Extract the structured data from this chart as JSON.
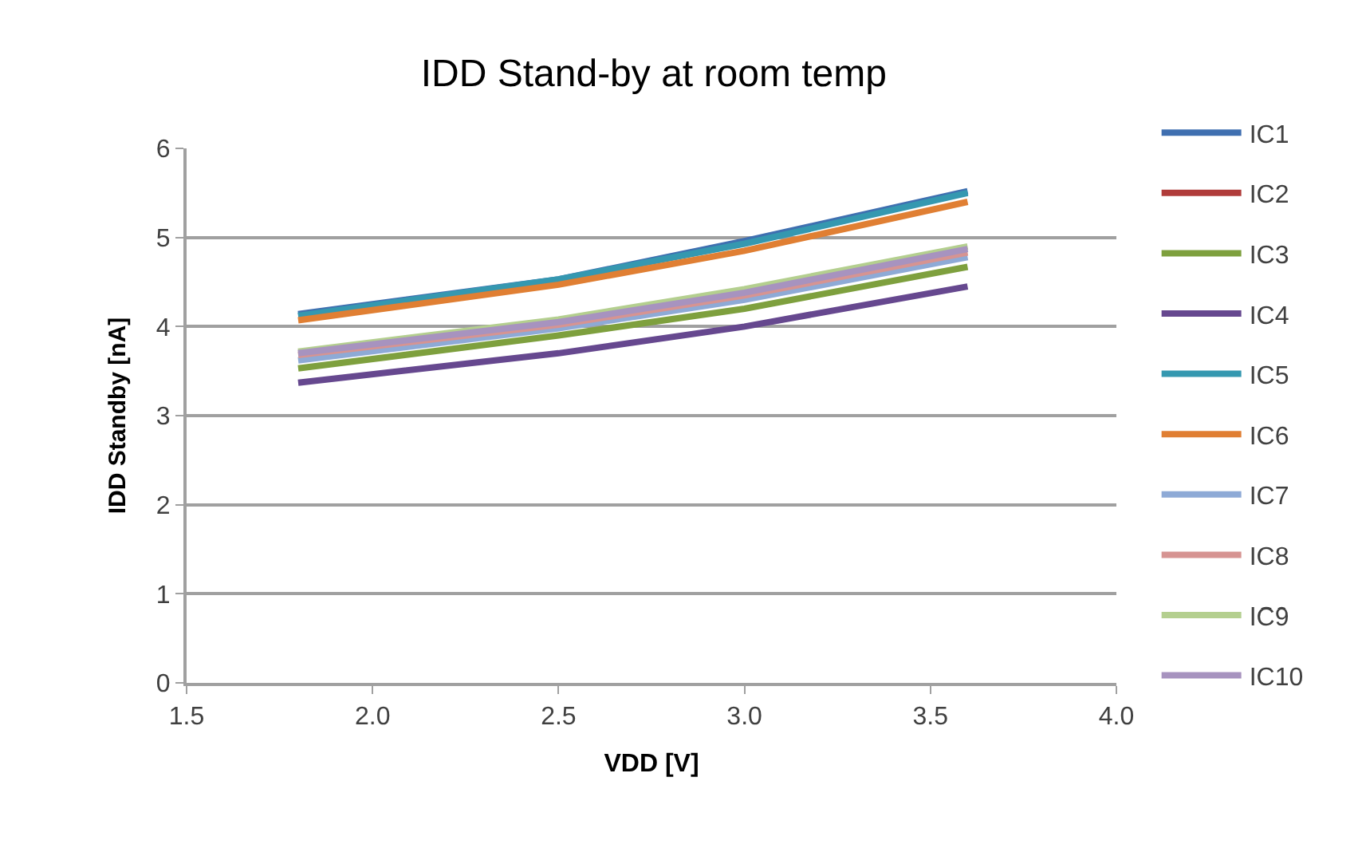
{
  "chart_data": {
    "type": "line",
    "title": "IDD Stand-by at room temp",
    "xlabel": "VDD [V]",
    "ylabel": "IDD Standby [nA]",
    "x": [
      1.8,
      2.5,
      3.0,
      3.6
    ],
    "xlim": [
      1.5,
      4.0
    ],
    "xticks": [
      {
        "value": 1.5,
        "label": "1.5"
      },
      {
        "value": 2.0,
        "label": "2.0"
      },
      {
        "value": 2.5,
        "label": "2.5"
      },
      {
        "value": 3.0,
        "label": "3.0"
      },
      {
        "value": 3.5,
        "label": "3.5"
      },
      {
        "value": 4.0,
        "label": "4.0"
      }
    ],
    "ylim": [
      0,
      6
    ],
    "yticks": [
      0,
      1,
      2,
      3,
      4,
      5,
      6
    ],
    "grid": "y",
    "legend": "right",
    "line_style": "solid",
    "marker": "none",
    "series": [
      {
        "name": "IC1",
        "color": "#3f6fb0",
        "values": [
          4.14,
          4.53,
          4.96,
          5.52
        ]
      },
      {
        "name": "IC2",
        "color": "#b03c3a",
        "values": [
          null,
          null,
          null,
          null
        ]
      },
      {
        "name": "IC3",
        "color": "#7ea03e",
        "values": [
          3.53,
          3.9,
          4.2,
          4.67
        ]
      },
      {
        "name": "IC4",
        "color": "#66488f",
        "values": [
          3.37,
          3.7,
          4.0,
          4.45
        ]
      },
      {
        "name": "IC5",
        "color": "#3598b0",
        "values": [
          4.12,
          4.53,
          4.93,
          5.5
        ]
      },
      {
        "name": "IC6",
        "color": "#e07f33",
        "values": [
          4.07,
          4.47,
          4.85,
          5.4
        ]
      },
      {
        "name": "IC7",
        "color": "#8eaad6",
        "values": [
          3.62,
          3.98,
          4.3,
          4.78
        ]
      },
      {
        "name": "IC8",
        "color": "#d69492",
        "values": [
          3.68,
          4.02,
          4.35,
          4.83
        ]
      },
      {
        "name": "IC9",
        "color": "#b4cf8f",
        "values": [
          3.72,
          4.08,
          4.42,
          4.9
        ]
      },
      {
        "name": "IC10",
        "color": "#a793bf",
        "values": [
          3.7,
          4.05,
          4.38,
          4.87
        ]
      }
    ]
  }
}
